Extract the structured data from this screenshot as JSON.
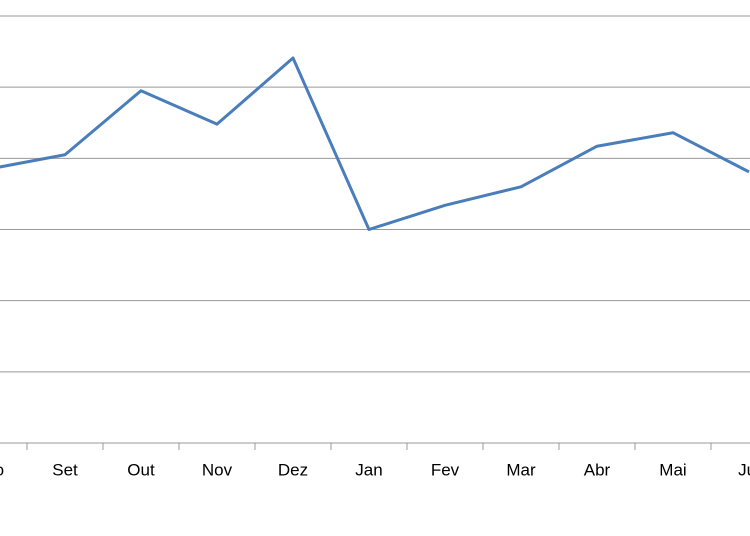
{
  "chart_data": {
    "type": "line",
    "categories": [
      "Ago",
      "Set",
      "Out",
      "Nov",
      "Dez",
      "Jan",
      "Fev",
      "Mar",
      "Abr",
      "Mai",
      "Jul"
    ],
    "series": [
      {
        "color": "#4a7ebb",
        "values": [
          3.85,
          4.05,
          4.95,
          4.48,
          5.41,
          3.0,
          3.34,
          3.6,
          4.17,
          4.36,
          3.81
        ]
      }
    ],
    "ylim": [
      0,
      6
    ],
    "yticks": [
      0,
      1,
      2,
      3,
      4,
      5,
      6
    ],
    "grid": true
  }
}
